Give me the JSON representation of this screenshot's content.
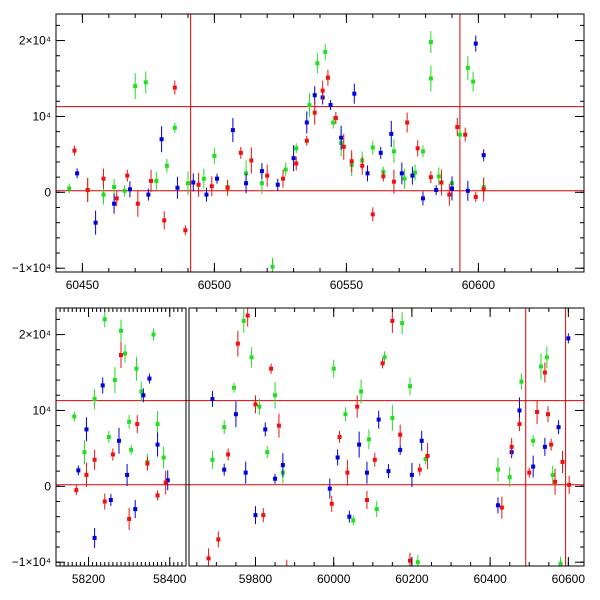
{
  "colors": {
    "green": "#22dd22",
    "blue": "#0000dd",
    "red": "#ee1111",
    "line": "#e00000"
  },
  "chart_data": [
    {
      "type": "scatter",
      "title": "",
      "xlabel": "",
      "ylabel": "",
      "xlim": [
        60440,
        60640
      ],
      "ylim": [
        -10500,
        23500
      ],
      "x_ticks": [
        {
          "value": 60450,
          "label": "60450"
        },
        {
          "value": 60500,
          "label": "60500"
        },
        {
          "value": 60550,
          "label": "60550"
        },
        {
          "value": 60600,
          "label": "60600"
        }
      ],
      "y_ticks": [
        {
          "value": -10000,
          "label": "−1×10⁴"
        },
        {
          "value": 0,
          "label": "0"
        },
        {
          "value": 10000,
          "label": "10⁴"
        },
        {
          "value": 20000,
          "label": "2×10⁴"
        }
      ],
      "hlines": [
        11300,
        200
      ],
      "vlines": [
        60491,
        60593
      ],
      "series": [
        {
          "color": "green",
          "points": [
            [
              60445,
              500
            ],
            [
              60452,
              300
            ],
            [
              60458,
              -300
            ],
            [
              60462,
              700
            ],
            [
              60466,
              200
            ],
            [
              60470,
              14000
            ],
            [
              60474,
              14500
            ],
            [
              60478,
              1500
            ],
            [
              60482,
              3500
            ],
            [
              60485,
              8500
            ],
            [
              60490,
              1200
            ],
            [
              60496,
              1800
            ],
            [
              60500,
              4800
            ],
            [
              60505,
              700
            ],
            [
              60512,
              2500
            ],
            [
              60518,
              1200
            ],
            [
              60522,
              -9800
            ],
            [
              60527,
              3000
            ],
            [
              60531,
              5800
            ],
            [
              60536,
              11500
            ],
            [
              60539,
              17000
            ],
            [
              60542,
              18500
            ],
            [
              60545,
              9200
            ],
            [
              60548,
              6500
            ],
            [
              60552,
              3600
            ],
            [
              60556,
              4200
            ],
            [
              60560,
              5900
            ],
            [
              60564,
              2700
            ],
            [
              60568,
              5400
            ],
            [
              60572,
              1800
            ],
            [
              60576,
              2600
            ],
            [
              60579,
              5400
            ],
            [
              60582,
              15000
            ],
            [
              60582,
              19800
            ],
            [
              60585,
              2100
            ],
            [
              60590,
              1200
            ],
            [
              60593,
              7600
            ],
            [
              60596,
              16400
            ],
            [
              60598,
              14600
            ],
            [
              60602,
              700
            ]
          ]
        },
        {
          "color": "blue",
          "points": [
            [
              60448,
              2500
            ],
            [
              60455,
              -4000
            ],
            [
              60462,
              -1500
            ],
            [
              60468,
              400
            ],
            [
              60475,
              -300
            ],
            [
              60480,
              7000
            ],
            [
              60486,
              600
            ],
            [
              60492,
              1300
            ],
            [
              60497,
              -300
            ],
            [
              60501,
              1800
            ],
            [
              60507,
              8200
            ],
            [
              60512,
              1200
            ],
            [
              60518,
              2800
            ],
            [
              60524,
              1000
            ],
            [
              60530,
              4500
            ],
            [
              60535,
              9200
            ],
            [
              60538,
              12800
            ],
            [
              60541,
              12500
            ],
            [
              60544,
              11500
            ],
            [
              60548,
              7200
            ],
            [
              60553,
              13000
            ],
            [
              60558,
              2500
            ],
            [
              60563,
              5200
            ],
            [
              60567,
              7700
            ],
            [
              60571,
              2500
            ],
            [
              60575,
              2200
            ],
            [
              60579,
              -800
            ],
            [
              60584,
              300
            ],
            [
              60590,
              500
            ],
            [
              60596,
              200
            ],
            [
              60599,
              19600
            ],
            [
              60602,
              4900
            ]
          ]
        },
        {
          "color": "red",
          "points": [
            [
              60447,
              5500
            ],
            [
              60452,
              300
            ],
            [
              60458,
              1800
            ],
            [
              60463,
              -800
            ],
            [
              60467,
              2200
            ],
            [
              60471,
              -1500
            ],
            [
              60476,
              1500
            ],
            [
              60481,
              -3700
            ],
            [
              60485,
              13800
            ],
            [
              60489,
              -5000
            ],
            [
              60494,
              1000
            ],
            [
              60499,
              800
            ],
            [
              60505,
              600
            ],
            [
              60510,
              5200
            ],
            [
              60514,
              4200
            ],
            [
              60520,
              2200
            ],
            [
              60526,
              1800
            ],
            [
              60531,
              3800
            ],
            [
              60535,
              6800
            ],
            [
              60538,
              10500
            ],
            [
              60541,
              13400
            ],
            [
              60543,
              15100
            ],
            [
              60546,
              9800
            ],
            [
              60549,
              6000
            ],
            [
              60552,
              4100
            ],
            [
              60556,
              3500
            ],
            [
              60560,
              -2900
            ],
            [
              60564,
              2100
            ],
            [
              60568,
              1400
            ],
            [
              60573,
              9200
            ],
            [
              60577,
              5800
            ],
            [
              60582,
              2000
            ],
            [
              60586,
              1300
            ],
            [
              60589,
              -300
            ],
            [
              60592,
              8600
            ],
            [
              60595,
              7600
            ],
            [
              60599,
              -600
            ],
            [
              60602,
              400
            ]
          ]
        }
      ]
    },
    {
      "type": "scatter",
      "title": "",
      "xlabel": "",
      "ylabel": "",
      "ylim": [
        -10500,
        23500
      ],
      "x_ticks": [
        {
          "value": 58200,
          "label": "58200"
        },
        {
          "value": 58400,
          "label": "58400"
        },
        {
          "value": 59800,
          "label": "59800"
        },
        {
          "value": 60000,
          "label": "60000"
        },
        {
          "value": 60200,
          "label": "60200"
        },
        {
          "value": 60400,
          "label": "60400"
        },
        {
          "value": 60600,
          "label": "60600"
        }
      ],
      "y_ticks": [
        {
          "value": -10000,
          "label": "−1×10⁴"
        },
        {
          "value": 0,
          "label": "0"
        },
        {
          "value": 10000,
          "label": "10⁴"
        },
        {
          "value": 20000,
          "label": "2×10⁴"
        }
      ],
      "hlines": [
        11300,
        200
      ],
      "vlines": [
        60491,
        60593
      ],
      "segments": [
        {
          "xlim": [
            58120,
            58440
          ]
        },
        {
          "xlim": [
            59630,
            60640
          ]
        }
      ],
      "series": [
        {
          "color": "green",
          "points": [
            [
              58165,
              9200
            ],
            [
              58190,
              4500
            ],
            [
              58215,
              11500
            ],
            [
              58240,
              22000
            ],
            [
              58250,
              6500
            ],
            [
              58265,
              14000
            ],
            [
              58280,
              20500
            ],
            [
              58290,
              17500
            ],
            [
              58300,
              8500
            ],
            [
              58305,
              4800
            ],
            [
              58318,
              15500
            ],
            [
              58330,
              12500
            ],
            [
              58345,
              3200
            ],
            [
              58360,
              20000
            ],
            [
              58370,
              8200
            ],
            [
              58385,
              3800
            ],
            [
              59690,
              3500
            ],
            [
              59720,
              7800
            ],
            [
              59745,
              13000
            ],
            [
              59770,
              21800
            ],
            [
              59790,
              17000
            ],
            [
              59810,
              10500
            ],
            [
              59830,
              4500
            ],
            [
              59850,
              12000
            ],
            [
              59870,
              1800
            ],
            [
              60000,
              15500
            ],
            [
              60030,
              9500
            ],
            [
              60050,
              -4500
            ],
            [
              60070,
              12500
            ],
            [
              60090,
              6200
            ],
            [
              60110,
              -3000
            ],
            [
              60130,
              17000
            ],
            [
              60150,
              9000
            ],
            [
              60175,
              21500
            ],
            [
              60195,
              13200
            ],
            [
              60215,
              -10000
            ],
            [
              60235,
              3600
            ],
            [
              60420,
              2200
            ],
            [
              60450,
              1200
            ],
            [
              60480,
              13800
            ],
            [
              60510,
              6000
            ],
            [
              60530,
              15800
            ],
            [
              60545,
              17000
            ],
            [
              60560,
              1500
            ],
            [
              60580,
              -10200
            ]
          ]
        },
        {
          "color": "blue",
          "points": [
            [
              58175,
              2100
            ],
            [
              58195,
              7500
            ],
            [
              58215,
              -6800
            ],
            [
              58235,
              13300
            ],
            [
              58255,
              -1800
            ],
            [
              58275,
              6000
            ],
            [
              58295,
              1500
            ],
            [
              58315,
              -3000
            ],
            [
              58335,
              12000
            ],
            [
              58350,
              14200
            ],
            [
              58370,
              5500
            ],
            [
              58395,
              800
            ],
            [
              59690,
              11500
            ],
            [
              59720,
              2200
            ],
            [
              59750,
              9500
            ],
            [
              59775,
              1800
            ],
            [
              59800,
              -3800
            ],
            [
              59825,
              7500
            ],
            [
              59850,
              1000
            ],
            [
              59870,
              2800
            ],
            [
              59990,
              -300
            ],
            [
              60010,
              3800
            ],
            [
              60040,
              -4000
            ],
            [
              60065,
              5500
            ],
            [
              60085,
              1800
            ],
            [
              60115,
              8800
            ],
            [
              60140,
              2000
            ],
            [
              60170,
              4800
            ],
            [
              60200,
              1500
            ],
            [
              60225,
              6000
            ],
            [
              60420,
              -2500
            ],
            [
              60455,
              4500
            ],
            [
              60475,
              10000
            ],
            [
              60510,
              2600
            ],
            [
              60540,
              5200
            ],
            [
              60575,
              7800
            ],
            [
              60600,
              19500
            ]
          ]
        },
        {
          "color": "red",
          "points": [
            [
              58170,
              -500
            ],
            [
              58195,
              1500
            ],
            [
              58215,
              3500
            ],
            [
              58240,
              -2000
            ],
            [
              58260,
              4200
            ],
            [
              58280,
              17300
            ],
            [
              58300,
              -4300
            ],
            [
              58320,
              8200
            ],
            [
              58345,
              3000
            ],
            [
              58370,
              -1200
            ],
            [
              58390,
              500
            ],
            [
              59680,
              -9500
            ],
            [
              59705,
              -7000
            ],
            [
              59730,
              4200
            ],
            [
              59755,
              18800
            ],
            [
              59780,
              22500
            ],
            [
              59800,
              10800
            ],
            [
              59820,
              -3800
            ],
            [
              59840,
              15500
            ],
            [
              59860,
              8000
            ],
            [
              59880,
              -11000
            ],
            [
              59995,
              -2300
            ],
            [
              60015,
              6500
            ],
            [
              60035,
              1800
            ],
            [
              60060,
              10500
            ],
            [
              60085,
              -1800
            ],
            [
              60105,
              3500
            ],
            [
              60125,
              16200
            ],
            [
              60150,
              21800
            ],
            [
              60170,
              6800
            ],
            [
              60195,
              -9800
            ],
            [
              60220,
              2200
            ],
            [
              60240,
              4000
            ],
            [
              60430,
              -2800
            ],
            [
              60455,
              5200
            ],
            [
              60475,
              8200
            ],
            [
              60500,
              1800
            ],
            [
              60520,
              9800
            ],
            [
              60540,
              15000
            ],
            [
              60548,
              9500
            ],
            [
              60556,
              5500
            ],
            [
              60566,
              600
            ],
            [
              60585,
              3200
            ],
            [
              60602,
              200
            ]
          ]
        }
      ]
    }
  ]
}
